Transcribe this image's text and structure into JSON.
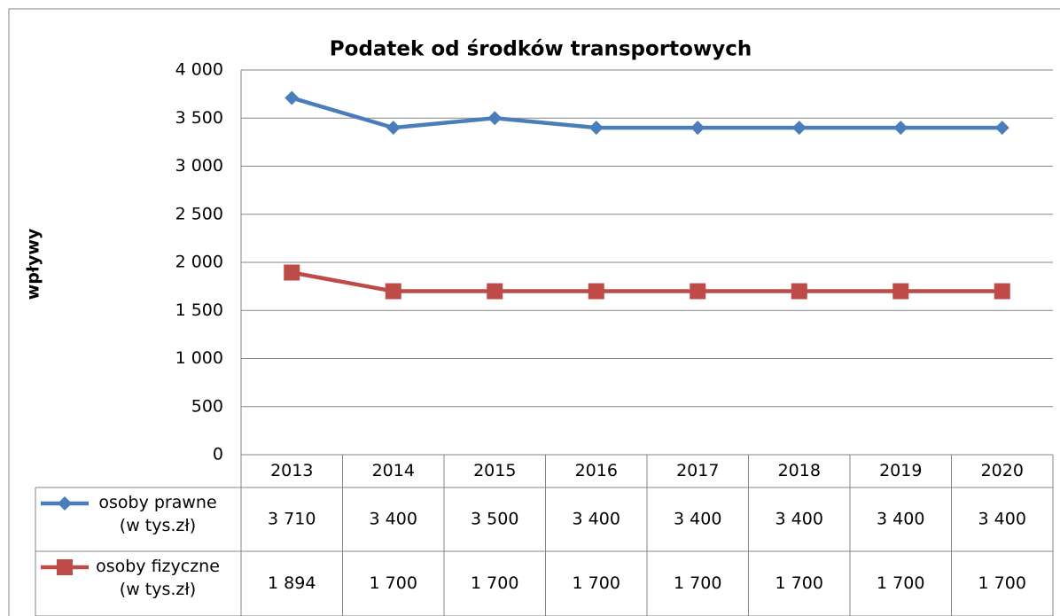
{
  "chart_data": {
    "type": "line",
    "title": "Podatek od środków transportowych",
    "y_label": "wpływy",
    "categories": [
      "2013",
      "2014",
      "2015",
      "2016",
      "2017",
      "2018",
      "2019",
      "2020"
    ],
    "series": [
      {
        "name": "osoby prawne (w tys.zł)",
        "color": "#4a7ebb",
        "marker": "diamond",
        "values": [
          3710,
          3400,
          3500,
          3400,
          3400,
          3400,
          3400,
          3400
        ],
        "value_labels": [
          "3 710",
          "3 400",
          "3 500",
          "3 400",
          "3 400",
          "3 400",
          "3 400",
          "3 400"
        ]
      },
      {
        "name": "osoby fizyczne (w tys.zł)",
        "color": "#be4b48",
        "marker": "square",
        "values": [
          1894,
          1700,
          1700,
          1700,
          1700,
          1700,
          1700,
          1700
        ],
        "value_labels": [
          "1 894",
          "1 700",
          "1 700",
          "1 700",
          "1 700",
          "1 700",
          "1 700",
          "1 700"
        ]
      }
    ],
    "ylim": [
      0,
      4000
    ],
    "yticks": [
      0,
      500,
      {
        "value": 1000,
        "label": "1 000"
      },
      {
        "value": 1500,
        "label": "1 500"
      },
      {
        "value": 2000,
        "label": "2 000"
      },
      {
        "value": 2500,
        "label": "2 500"
      },
      {
        "value": 3000,
        "label": "3 000"
      },
      {
        "value": 3500,
        "label": "3 500"
      },
      {
        "value": 4000,
        "label": "4 000"
      }
    ],
    "grid": true
  }
}
